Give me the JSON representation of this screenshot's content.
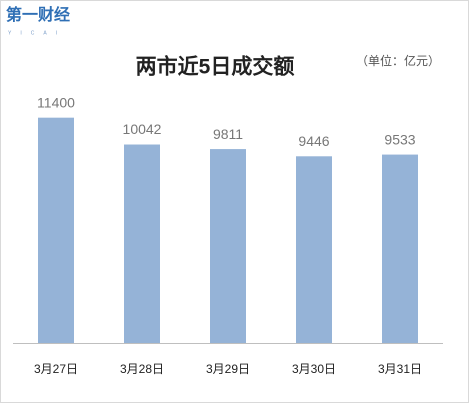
{
  "logo": {
    "text": "第一财经",
    "sub": "YICAI"
  },
  "chart_data": {
    "type": "bar",
    "title": "两市近5日成交额",
    "unit": "（单位：亿元）",
    "categories": [
      "3月27日",
      "3月28日",
      "3月29日",
      "3月30日",
      "3月31日"
    ],
    "values": [
      11400,
      10042,
      9811,
      9446,
      9533
    ],
    "color": "#95b3d7",
    "ylim": [
      0,
      12800
    ]
  }
}
